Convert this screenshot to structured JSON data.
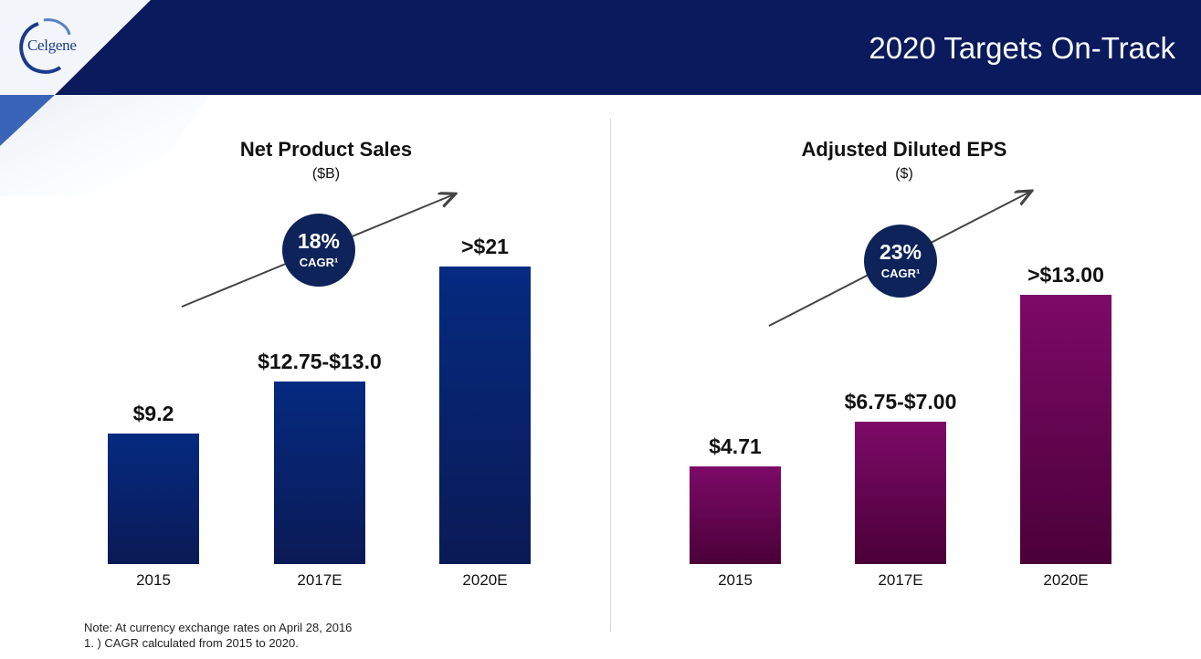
{
  "header": {
    "title": "2020 Targets On-Track",
    "logo_text": "Celgene",
    "color": "#0a1a5c"
  },
  "chart_data": [
    {
      "type": "bar",
      "title": "Net Product Sales",
      "subtitle": "($B)",
      "categories": [
        "2015",
        "2017E",
        "2020E"
      ],
      "values": [
        9.2,
        12.875,
        21
      ],
      "value_labels": [
        "$9.2",
        "$12.75-$13.0",
        ">$21"
      ],
      "ylim": [
        0,
        23.5
      ],
      "color": "#052a80",
      "cagr": {
        "value": "18%",
        "label": "CAGR¹"
      },
      "grid": false
    },
    {
      "type": "bar",
      "title": "Adjusted Diluted EPS",
      "subtitle": "($)",
      "categories": [
        "2015",
        "2017E",
        "2020E"
      ],
      "values": [
        4.71,
        6.875,
        13
      ],
      "value_labels": [
        "$4.71",
        "$6.75-$7.00",
        ">$13.00"
      ],
      "ylim": [
        0,
        15.2
      ],
      "color": "#7d0a68",
      "cagr": {
        "value": "23%",
        "label": "CAGR¹"
      },
      "grid": false
    }
  ],
  "footnotes": {
    "note": "Note: At currency exchange rates on April 28, 2016",
    "cagr": "1. ) CAGR calculated from 2015 to 2020."
  }
}
